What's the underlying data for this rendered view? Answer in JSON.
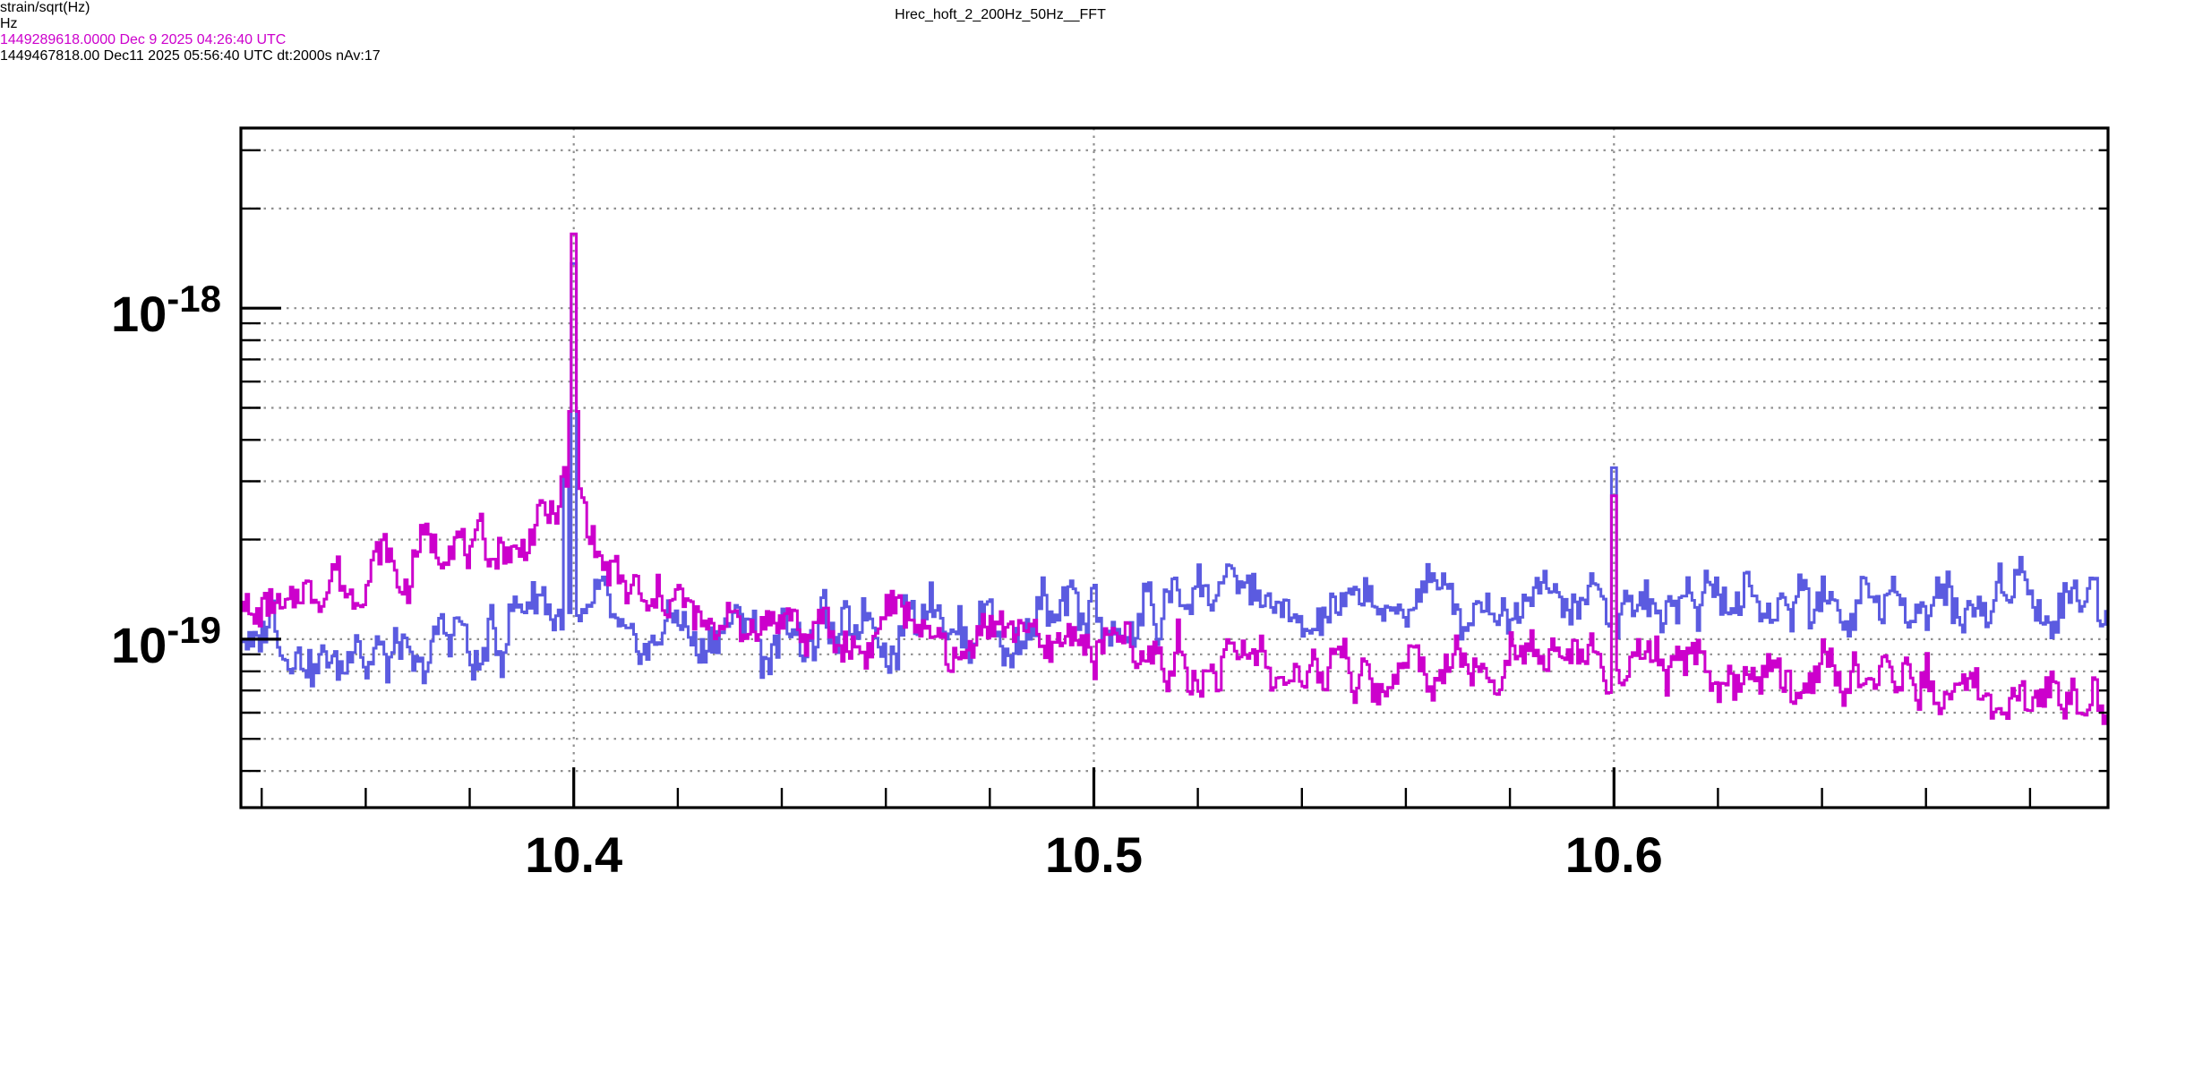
{
  "page": {
    "background": "#ffffff"
  },
  "chart_data": {
    "type": "line",
    "title": "Hrec_hoft_2_200Hz_50Hz__FFT",
    "xlabel": "Hz",
    "ylabel": "strain/sqrt(Hz)",
    "grid": "dotted",
    "grid_color": "#8f8f8f",
    "frame_color": "#000000",
    "legend": "none",
    "x_axis": {
      "min": 10.336,
      "max": 10.695,
      "scale": "linear",
      "major_ticks": [
        {
          "label": "10.4",
          "value": 10.4
        },
        {
          "label": "10.5",
          "value": 10.5
        },
        {
          "label": "10.6",
          "value": 10.6
        }
      ],
      "minor_tick_start": 10.34,
      "minor_tick_step": 0.02
    },
    "y_axis": {
      "min": 3.1e-20,
      "max": 3.5e-18,
      "scale": "log",
      "major_ticks": [
        {
          "base": "10",
          "exponent": "-18",
          "value": 1e-18
        },
        {
          "base": "10",
          "exponent": "-19",
          "value": 1e-19
        }
      ],
      "minor_tick_values": [
        3e-18,
        2e-18,
        9e-19,
        8e-19,
        7e-19,
        6e-19,
        5e-19,
        4e-19,
        3e-19,
        2e-19,
        9e-20,
        8e-20,
        7e-20,
        6e-20,
        5e-20,
        4e-20
      ]
    },
    "bin_width_hz": 0.0005,
    "series": [
      {
        "name": "spectrum-1449467818",
        "gps": "1449467818.00",
        "color": "#5b5be0",
        "z": 1,
        "noise_dex": 0.095,
        "seed": 3,
        "envelope": [
          [
            10.336,
            1.05e-19
          ],
          [
            10.35,
            9.6e-20
          ],
          [
            10.365,
            9.6e-20
          ],
          [
            10.38,
            1e-19
          ],
          [
            10.39,
            1.08e-19
          ],
          [
            10.396,
            1.35e-19
          ],
          [
            10.402,
            1.2e-19
          ],
          [
            10.41,
            1.03e-19
          ],
          [
            10.425,
            1e-19
          ],
          [
            10.44,
            1.02e-19
          ],
          [
            10.46,
            1.05e-19
          ],
          [
            10.48,
            1.08e-19
          ],
          [
            10.495,
            1.12e-19
          ],
          [
            10.505,
            1.18e-19
          ],
          [
            10.52,
            1.28e-19
          ],
          [
            10.54,
            1.3e-19
          ],
          [
            10.56,
            1.27e-19
          ],
          [
            10.58,
            1.28e-19
          ],
          [
            10.6,
            1.3e-19
          ],
          [
            10.62,
            1.32e-19
          ],
          [
            10.64,
            1.3e-19
          ],
          [
            10.66,
            1.32e-19
          ],
          [
            10.68,
            1.33e-19
          ],
          [
            10.695,
            1.38e-19
          ]
        ],
        "peaks": [
          {
            "x": 10.3985,
            "value": 3.9e-19,
            "width_hz": 0.0018
          },
          {
            "x": 10.4,
            "value": 2.2e-18,
            "width_hz": 0.0012
          },
          {
            "x": 10.5,
            "value": 2.3e-19,
            "width_hz": 0.0012
          },
          {
            "x": 10.6,
            "value": 4.5e-19,
            "width_hz": 0.0015
          }
        ]
      },
      {
        "name": "spectrum-1449289618",
        "gps": "1449289618.0000",
        "color": "#cc00cc",
        "z": 2,
        "noise_dex": 0.085,
        "seed": 7,
        "envelope": [
          [
            10.336,
            1.15e-19
          ],
          [
            10.345,
            1.3e-19
          ],
          [
            10.355,
            1.45e-19
          ],
          [
            10.365,
            1.6e-19
          ],
          [
            10.372,
            1.75e-19
          ],
          [
            10.38,
            1.9e-19
          ],
          [
            10.388,
            2e-19
          ],
          [
            10.394,
            2.2e-19
          ],
          [
            10.398,
            2.6e-19
          ],
          [
            10.4015,
            2.8e-19
          ],
          [
            10.404,
            1.9e-19
          ],
          [
            10.408,
            1.5e-19
          ],
          [
            10.415,
            1.35e-19
          ],
          [
            10.425,
            1.25e-19
          ],
          [
            10.44,
            1.12e-19
          ],
          [
            10.455,
            1.07e-19
          ],
          [
            10.47,
            1.03e-19
          ],
          [
            10.485,
            1e-19
          ],
          [
            10.5,
            9.3e-20
          ],
          [
            10.515,
            8.6e-20
          ],
          [
            10.53,
            8.3e-20
          ],
          [
            10.55,
            8.1e-20
          ],
          [
            10.57,
            8.3e-20
          ],
          [
            10.59,
            8.6e-20
          ],
          [
            10.605,
            8.3e-20
          ],
          [
            10.625,
            8.1e-20
          ],
          [
            10.645,
            7.8e-20
          ],
          [
            10.665,
            7.3e-20
          ],
          [
            10.68,
            6.8e-20
          ],
          [
            10.695,
            6.4e-20
          ]
        ],
        "peaks": [
          {
            "x": 10.4,
            "value": 2e-18,
            "width_hz": 0.002
          },
          {
            "x": 10.6,
            "value": 3.7e-19,
            "width_hz": 0.0015
          }
        ]
      }
    ]
  },
  "footer": {
    "line1": {
      "text": "1449289618.0000 Dec 9 2025 04:26:40 UTC",
      "color": "#cc00cc"
    },
    "line2": {
      "text": "1449467818.00 Dec11 2025 05:56:40 UTC dt:2000s nAv:17",
      "color": "#000000"
    }
  }
}
